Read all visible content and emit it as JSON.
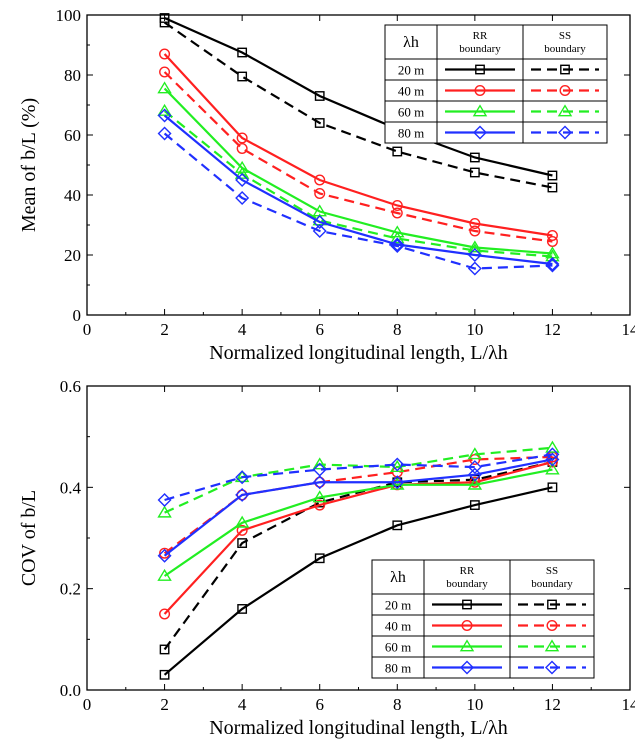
{
  "colors": {
    "20 m": "#000000",
    "40 m": "#ff2020",
    "60 m": "#22ee22",
    "80 m": "#2030ff"
  },
  "chart_data": [
    {
      "type": "line",
      "xlabel": "Normalized longitudinal length, L/λh",
      "ylabel": "Mean of b/L (%)",
      "xlim": [
        0,
        14
      ],
      "ylim": [
        0,
        100
      ],
      "xticks": [
        0,
        2,
        4,
        6,
        8,
        10,
        12,
        14
      ],
      "yticks": [
        0,
        20,
        40,
        60,
        80,
        100
      ],
      "x": [
        2,
        4,
        6,
        8,
        10,
        12
      ],
      "legend": {
        "position": "top-right",
        "header": {
          "lambda": "λh",
          "rr": "RR boundary",
          "ss": "SS boundary"
        },
        "rows": [
          "20 m",
          "40 m",
          "60 m",
          "80 m"
        ]
      },
      "series": [
        {
          "name": "20 m",
          "boundary": "RR",
          "marker": "square",
          "values": [
            99,
            87.5,
            73,
            62,
            52.5,
            46.5
          ]
        },
        {
          "name": "20 m",
          "boundary": "SS",
          "marker": "square",
          "values": [
            97.5,
            79.5,
            64,
            54.5,
            47.5,
            42.5
          ]
        },
        {
          "name": "40 m",
          "boundary": "RR",
          "marker": "circle",
          "values": [
            87,
            59,
            45,
            36.5,
            30.5,
            26.5
          ]
        },
        {
          "name": "40 m",
          "boundary": "SS",
          "marker": "circle",
          "values": [
            81,
            55.5,
            40.5,
            34,
            28,
            24.5
          ]
        },
        {
          "name": "60 m",
          "boundary": "RR",
          "marker": "triangle",
          "values": [
            75.5,
            49,
            34.5,
            27.5,
            22.5,
            20.5
          ]
        },
        {
          "name": "60 m",
          "boundary": "SS",
          "marker": "triangle",
          "values": [
            68,
            47,
            31.5,
            25.5,
            21.5,
            19.5
          ]
        },
        {
          "name": "80 m",
          "boundary": "RR",
          "marker": "diamond",
          "values": [
            66.5,
            45,
            31,
            23.5,
            20,
            17
          ]
        },
        {
          "name": "80 m",
          "boundary": "SS",
          "marker": "diamond",
          "values": [
            60.5,
            39,
            28,
            23,
            15.5,
            16.5
          ]
        }
      ]
    },
    {
      "type": "line",
      "xlabel": "Normalized longitudinal length, L/λh",
      "ylabel": "COV of b/L",
      "xlim": [
        0,
        14
      ],
      "ylim": [
        0,
        0.6
      ],
      "xticks": [
        0,
        2,
        4,
        6,
        8,
        10,
        12,
        14
      ],
      "yticks": [
        0.0,
        0.2,
        0.4,
        0.6
      ],
      "x": [
        2,
        4,
        6,
        8,
        10,
        12
      ],
      "legend": {
        "position": "bottom-right",
        "header": {
          "lambda": "λh",
          "rr": "RR boundary",
          "ss": "SS boundary"
        },
        "rows": [
          "20 m",
          "40 m",
          "60 m",
          "80 m"
        ]
      },
      "series": [
        {
          "name": "20 m",
          "boundary": "RR",
          "marker": "square",
          "values": [
            0.03,
            0.16,
            0.26,
            0.325,
            0.365,
            0.4
          ]
        },
        {
          "name": "20 m",
          "boundary": "SS",
          "marker": "square",
          "values": [
            0.08,
            0.29,
            0.37,
            0.41,
            0.415,
            0.45
          ]
        },
        {
          "name": "40 m",
          "boundary": "RR",
          "marker": "circle",
          "values": [
            0.15,
            0.315,
            0.365,
            0.405,
            0.41,
            0.45
          ]
        },
        {
          "name": "40 m",
          "boundary": "SS",
          "marker": "circle",
          "values": [
            0.27,
            0.385,
            0.41,
            0.43,
            0.455,
            0.46
          ]
        },
        {
          "name": "60 m",
          "boundary": "RR",
          "marker": "triangle",
          "values": [
            0.225,
            0.33,
            0.38,
            0.405,
            0.405,
            0.435
          ]
        },
        {
          "name": "60 m",
          "boundary": "SS",
          "marker": "triangle",
          "values": [
            0.35,
            0.42,
            0.445,
            0.44,
            0.465,
            0.478
          ]
        },
        {
          "name": "80 m",
          "boundary": "RR",
          "marker": "diamond",
          "values": [
            0.265,
            0.385,
            0.41,
            0.41,
            0.425,
            0.455
          ]
        },
        {
          "name": "80 m",
          "boundary": "SS",
          "marker": "diamond",
          "values": [
            0.375,
            0.42,
            0.435,
            0.445,
            0.44,
            0.465
          ]
        }
      ]
    }
  ]
}
